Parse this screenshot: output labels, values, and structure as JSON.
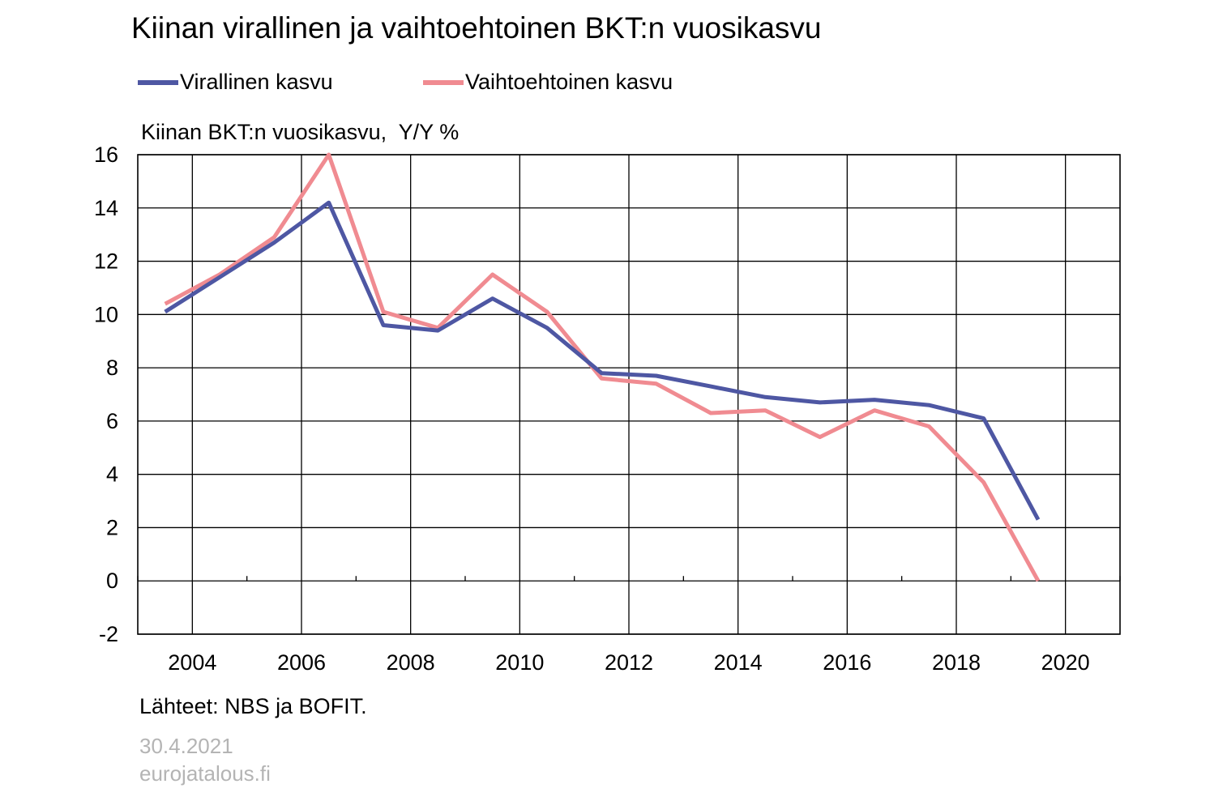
{
  "chart_data": {
    "type": "line",
    "title": "Kiinan virallinen ja vaihtoehtoinen BKT:n vuosikasvu",
    "ylabel": "Kiinan BKT:n vuosikasvu,  Y/Y %",
    "xlabel": "",
    "x_tick_labels": [
      "2004",
      "2006",
      "2008",
      "2010",
      "2012",
      "2014",
      "2016",
      "2018",
      "2020"
    ],
    "y_tick_labels": [
      "16",
      "14",
      "12",
      "10",
      "8",
      "6",
      "4",
      "2",
      "0",
      "-2"
    ],
    "ylim": [
      -2,
      16
    ],
    "xlim": [
      2003,
      2021
    ],
    "grid": true,
    "legend_position": "top-left",
    "x": [
      2003.5,
      2004.5,
      2005.5,
      2006.5,
      2007.5,
      2008.5,
      2009.5,
      2010.5,
      2011.5,
      2012.5,
      2013.5,
      2014.5,
      2015.5,
      2016.5,
      2017.5,
      2018.5,
      2019.5
    ],
    "series": [
      {
        "name": "Virallinen kasvu",
        "color": "#4e57a3",
        "values": [
          10.1,
          11.4,
          12.7,
          14.2,
          9.6,
          9.4,
          10.6,
          9.5,
          7.8,
          7.7,
          7.3,
          6.9,
          6.7,
          6.8,
          6.6,
          6.1,
          2.3
        ]
      },
      {
        "name": "Vaihtoehtoinen kasvu",
        "color": "#f08b91",
        "values": [
          10.4,
          11.5,
          12.9,
          16.0,
          10.1,
          9.5,
          11.5,
          10.1,
          7.6,
          7.4,
          6.3,
          6.4,
          5.4,
          6.4,
          5.8,
          3.7,
          0.0
        ]
      }
    ]
  },
  "source": "Lähteet: NBS ja BOFIT.",
  "date": "30.4.2021",
  "site": "eurojatalous.fi"
}
